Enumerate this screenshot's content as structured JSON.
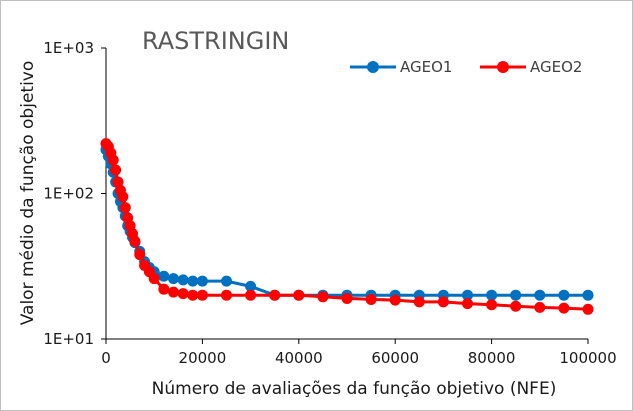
{
  "chart_data": {
    "type": "line",
    "title": "RASTRINGIN",
    "xlabel": "Número de avaliações da função objetivo (NFE)",
    "ylabel": "Valor médio da função objetivo",
    "xlim": [
      0,
      100000
    ],
    "ylim": [
      10,
      1000
    ],
    "yscale": "log",
    "x_ticks": [
      "0",
      "20000",
      "40000",
      "60000",
      "80000",
      "100000"
    ],
    "y_ticks": [
      "1E+01",
      "1E+02",
      "1E+03"
    ],
    "grid": false,
    "legend_position": "top-right",
    "series": [
      {
        "name": "AGEO1",
        "color": "#0070c0",
        "x": [
          0,
          500,
          1000,
          1500,
          2000,
          2500,
          3000,
          3500,
          4000,
          4500,
          5000,
          5500,
          6000,
          7000,
          8000,
          9000,
          10000,
          12000,
          14000,
          16000,
          18000,
          20000,
          25000,
          30000,
          35000,
          40000,
          45000,
          50000,
          55000,
          60000,
          65000,
          70000,
          75000,
          80000,
          85000,
          90000,
          95000,
          100000
        ],
        "values": [
          200,
          180,
          160,
          140,
          120,
          100,
          88,
          80,
          70,
          60,
          55,
          50,
          46,
          40,
          34,
          31,
          29,
          27,
          26,
          25.5,
          25,
          25,
          25,
          23,
          20,
          20,
          20,
          20,
          20,
          20,
          20,
          20,
          20,
          20,
          20,
          20,
          20,
          20
        ]
      },
      {
        "name": "AGEO2",
        "color": "#ff0000",
        "x": [
          0,
          500,
          1000,
          1500,
          2000,
          2500,
          3000,
          3500,
          4000,
          4500,
          5000,
          5500,
          6000,
          7000,
          8000,
          9000,
          10000,
          12000,
          14000,
          16000,
          18000,
          20000,
          25000,
          30000,
          35000,
          40000,
          45000,
          50000,
          55000,
          60000,
          65000,
          70000,
          75000,
          80000,
          85000,
          90000,
          95000,
          100000
        ],
        "values": [
          220,
          210,
          190,
          170,
          145,
          120,
          105,
          95,
          80,
          68,
          60,
          53,
          47,
          38,
          32,
          29,
          26,
          22,
          21,
          20.5,
          20,
          20,
          20,
          20,
          20,
          20,
          19.5,
          19,
          18.7,
          18.5,
          18,
          18,
          17.5,
          17.2,
          16.8,
          16.5,
          16.3,
          16
        ]
      }
    ]
  }
}
